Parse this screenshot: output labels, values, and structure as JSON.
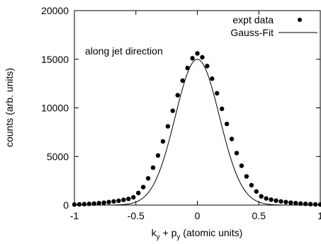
{
  "chart_data": {
    "type": "scatter",
    "xlabel": "k_y + p_y (atomic units)",
    "ylabel": "counts (arb. units)",
    "xlim": [
      -1,
      1
    ],
    "ylim": [
      0,
      20000
    ],
    "x_ticks": [
      -1,
      -0.5,
      0,
      0.5,
      1
    ],
    "x_tick_labels": [
      "-1",
      "-0.5",
      "0",
      "0.5",
      "1"
    ],
    "y_ticks": [
      0,
      5000,
      10000,
      15000,
      20000
    ],
    "y_tick_labels": [
      "0",
      "5000",
      "10000",
      "15000",
      "20000"
    ],
    "annotation": "along jet direction",
    "legend_position": "top-right",
    "grid": false,
    "series": [
      {
        "name": "expt data",
        "style": "points",
        "x": [
          -1.0,
          -0.96,
          -0.92,
          -0.88,
          -0.84,
          -0.8,
          -0.76,
          -0.72,
          -0.68,
          -0.64,
          -0.6,
          -0.56,
          -0.52,
          -0.48,
          -0.44,
          -0.4,
          -0.36,
          -0.32,
          -0.28,
          -0.24,
          -0.2,
          -0.16,
          -0.12,
          -0.08,
          -0.04,
          0.0,
          0.04,
          0.08,
          0.12,
          0.16,
          0.2,
          0.24,
          0.28,
          0.32,
          0.36,
          0.4,
          0.44,
          0.48,
          0.52,
          0.56,
          0.6,
          0.64,
          0.68,
          0.72,
          0.76,
          0.8,
          0.84,
          0.88,
          0.92,
          0.96,
          1.0
        ],
        "y": [
          60,
          80,
          100,
          130,
          160,
          200,
          250,
          310,
          380,
          450,
          540,
          640,
          800,
          1250,
          1850,
          2750,
          3850,
          5100,
          6550,
          8100,
          9700,
          11300,
          12800,
          14100,
          15100,
          15600,
          15200,
          14300,
          13000,
          11500,
          9900,
          8350,
          6800,
          5350,
          4050,
          2950,
          2050,
          1400,
          900,
          680,
          560,
          460,
          380,
          310,
          250,
          200,
          160,
          130,
          100,
          80,
          60
        ]
      },
      {
        "name": "Gauss-Fit",
        "style": "line",
        "amplitude": 15000,
        "center": 0.0,
        "sigma": 0.18
      }
    ]
  }
}
